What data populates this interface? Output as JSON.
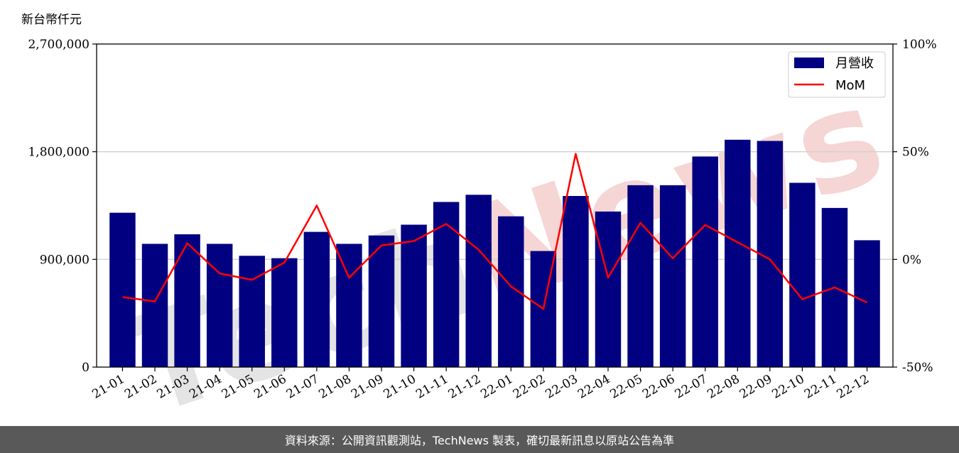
{
  "chart_data": {
    "type": "bar",
    "unit_label": "新台幣仟元",
    "categories": [
      "21-01",
      "21-02",
      "21-03",
      "21-04",
      "21-05",
      "21-06",
      "21-07",
      "21-08",
      "21-09",
      "21-10",
      "21-11",
      "21-12",
      "22-01",
      "22-02",
      "22-03",
      "22-04",
      "22-05",
      "22-06",
      "22-07",
      "22-08",
      "22-09",
      "22-10",
      "22-11",
      "22-12"
    ],
    "series": [
      {
        "name": "月營收",
        "type": "bar",
        "axis": "left",
        "color": "#000080",
        "values": [
          1290000,
          1030000,
          1110000,
          1030000,
          930000,
          910000,
          1130000,
          1030000,
          1100000,
          1190000,
          1380000,
          1440000,
          1260000,
          970000,
          1430000,
          1300000,
          1520000,
          1520000,
          1760000,
          1900000,
          1890000,
          1540000,
          1330000,
          1060000
        ]
      },
      {
        "name": "MoM",
        "type": "line",
        "axis": "right",
        "color": "#ff0000",
        "values": [
          -17.5,
          -19.5,
          7.5,
          -6.5,
          -9.5,
          -1.5,
          25,
          -8.5,
          6.5,
          8.5,
          16.5,
          4.5,
          -12.5,
          -23,
          49,
          -8.5,
          17,
          0.5,
          16,
          8,
          0,
          -18.5,
          -13,
          -20
        ]
      }
    ],
    "y_left": {
      "min": 0,
      "max": 2700000,
      "ticks": [
        "0",
        "900,000",
        "1,800,000",
        "2,700,000"
      ],
      "tick_values": [
        0,
        900000,
        1800000,
        2700000
      ]
    },
    "y_right": {
      "min": -50,
      "max": 100,
      "ticks": [
        "-50%",
        "0%",
        "50%",
        "100%"
      ],
      "tick_values": [
        -50,
        0,
        50,
        100
      ]
    },
    "grid": "horizontal",
    "legend_position": "top-right"
  },
  "watermark": {
    "text": "TechNews",
    "colors": [
      "#d9d9d9",
      "#f2c4c4"
    ]
  },
  "footer": {
    "text": "資料來源：公開資訊觀測站，TechNews 製表，確切最新訊息以原站公告為準"
  }
}
